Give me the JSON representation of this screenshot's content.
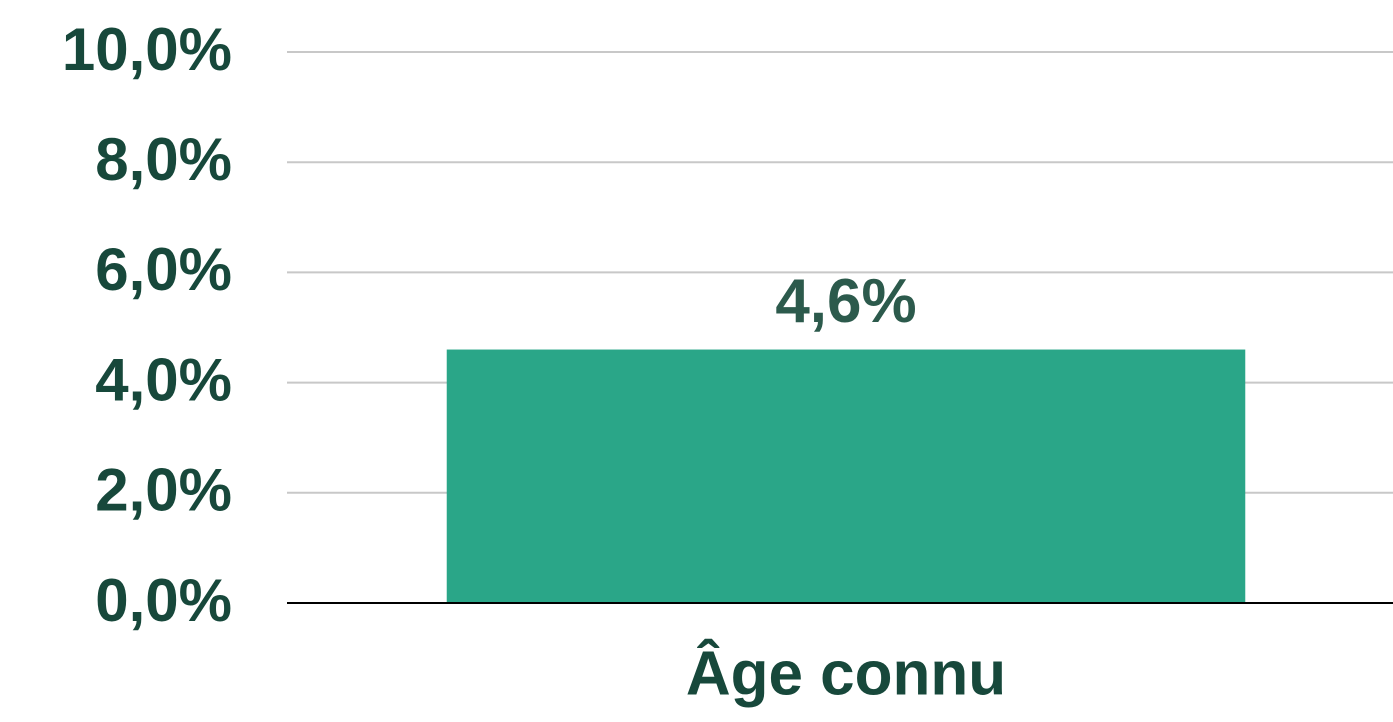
{
  "chart_data": {
    "type": "bar",
    "categories": [
      "Âge connu"
    ],
    "values": [
      4.6
    ],
    "value_labels": [
      "4,6%"
    ],
    "color": "#2aa688",
    "ylim": [
      0,
      10
    ],
    "yticks": [
      {
        "value": 0,
        "label": "0,0%"
      },
      {
        "value": 2,
        "label": "2,0%"
      },
      {
        "value": 4,
        "label": "4,0%"
      },
      {
        "value": 6,
        "label": "6,0%"
      },
      {
        "value": 8,
        "label": "8,0%"
      },
      {
        "value": 10,
        "label": "10,0%"
      }
    ],
    "grid": true
  }
}
